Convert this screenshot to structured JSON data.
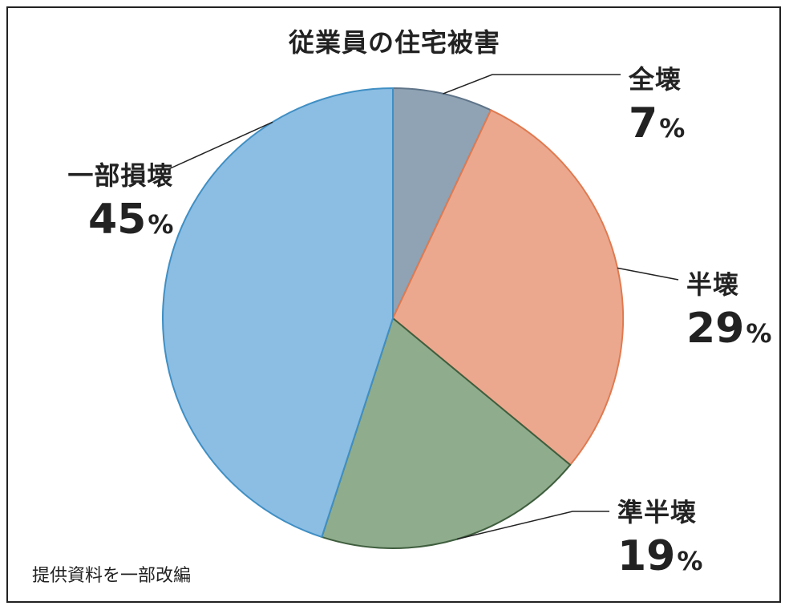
{
  "chart_data": {
    "type": "pie",
    "title": "従業員の住宅被害",
    "unit": "%",
    "slices": [
      {
        "label": "全壊",
        "value": 7,
        "color": "#8fa3b5",
        "stroke": "#5f7488"
      },
      {
        "label": "半壊",
        "value": 29,
        "color": "#eba88f",
        "stroke": "#e07a50"
      },
      {
        "label": "準半壊",
        "value": 19,
        "color": "#8fac8c",
        "stroke": "#3f5e3e"
      },
      {
        "label": "一部損壊",
        "value": 45,
        "color": "#8cbde3",
        "stroke": "#3f8fc4"
      }
    ]
  },
  "footnote": "提供資料を一部改編"
}
